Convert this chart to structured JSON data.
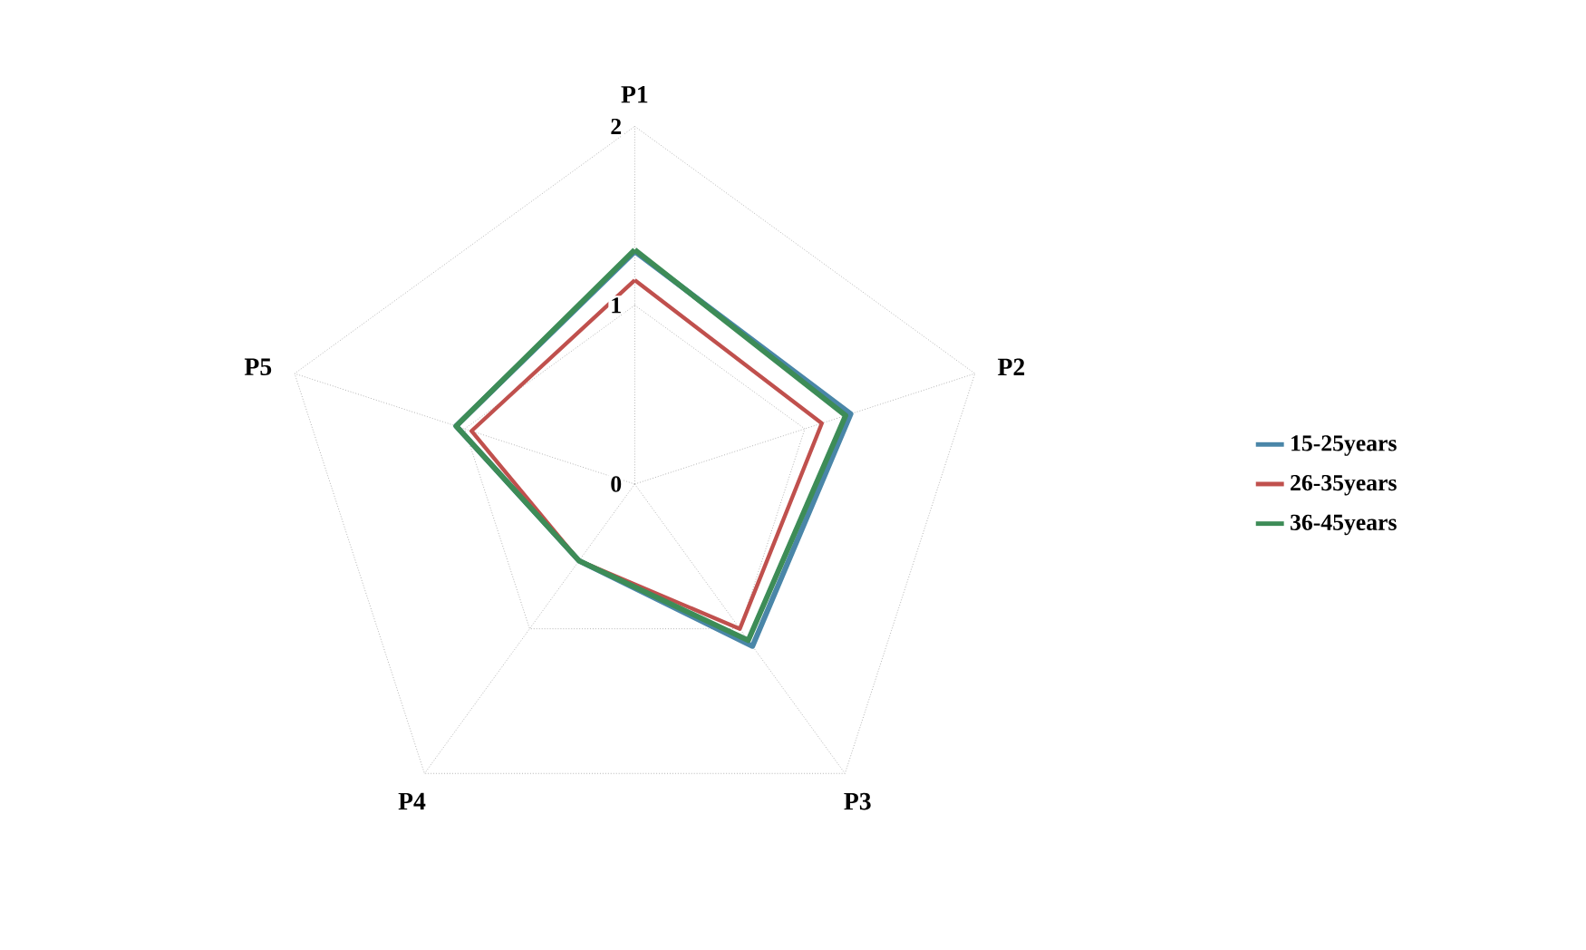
{
  "chart_data": {
    "type": "radar",
    "categories": [
      "P1",
      "P2",
      "P3",
      "P4",
      "P5"
    ],
    "series": [
      {
        "name": "15-25years",
        "color": "#4a86a8",
        "values": [
          1.3,
          1.27,
          1.12,
          0.53,
          1.05
        ]
      },
      {
        "name": "26-35years",
        "color": "#c0504d",
        "values": [
          1.14,
          1.1,
          1.0,
          0.53,
          0.96
        ]
      },
      {
        "name": "36-45years",
        "color": "#3d8c57",
        "values": [
          1.31,
          1.24,
          1.08,
          0.53,
          1.05
        ]
      }
    ],
    "ylim": [
      0,
      2
    ],
    "yticks": [
      0,
      1,
      2
    ],
    "grid": true,
    "legend": "right"
  }
}
